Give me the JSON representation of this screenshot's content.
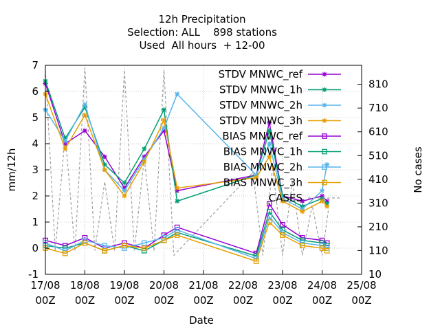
{
  "chart_data": {
    "type": "line",
    "title_lines": [
      "12h Precipitation",
      "Selection: ALL    898 stations",
      "Used  All hours  + 12-00"
    ],
    "xlabel": "Date",
    "ylabel": "mm/12h",
    "y2label": "No cases",
    "xlim": [
      "2023-08-17T00:00",
      "2023-08-25T00:00"
    ],
    "x_ticks": [
      {
        "line1": "17/08",
        "line2": "00Z"
      },
      {
        "line1": "18/08",
        "line2": "00Z"
      },
      {
        "line1": "19/08",
        "line2": "00Z"
      },
      {
        "line1": "20/08",
        "line2": "00Z"
      },
      {
        "line1": "21/08",
        "line2": "00Z"
      },
      {
        "line1": "22/08",
        "line2": "00Z"
      },
      {
        "line1": "23/08",
        "line2": "00Z"
      },
      {
        "line1": "24/08",
        "line2": "00Z"
      },
      {
        "line1": "25/08",
        "line2": "00Z"
      }
    ],
    "ylim": [
      -1,
      7
    ],
    "y_ticks": [
      -1,
      0,
      1,
      2,
      3,
      4,
      5,
      6,
      7
    ],
    "y2lim": [
      10,
      890
    ],
    "y2_ticks": [
      10,
      110,
      210,
      310,
      410,
      510,
      610,
      710,
      810
    ],
    "grid": true,
    "legend_position": "top-right",
    "series": [
      {
        "name": "STDV MNWC_ref",
        "color": "#9400d3",
        "marker": "star",
        "axis": "y",
        "x": [
          "2023-08-17T00:00",
          "2023-08-17T12:00",
          "2023-08-18T00:00",
          "2023-08-18T12:00",
          "2023-08-19T00:00",
          "2023-08-19T12:00",
          "2023-08-20T00:00",
          "2023-08-20T08:00",
          "2023-08-22T08:00",
          "2023-08-22T16:00",
          "2023-08-23T00:00",
          "2023-08-23T12:00",
          "2023-08-24T00:00",
          "2023-08-24T03:00"
        ],
        "values": [
          6.3,
          4.0,
          4.5,
          3.5,
          2.3,
          3.5,
          4.5,
          2.2,
          2.8,
          4.8,
          2.0,
          1.8,
          2.0,
          1.8
        ]
      },
      {
        "name": "STDV MNWC_1h",
        "color": "#009e73",
        "marker": "star",
        "axis": "y",
        "x": [
          "2023-08-17T00:00",
          "2023-08-17T12:00",
          "2023-08-18T00:00",
          "2023-08-18T12:00",
          "2023-08-19T00:00",
          "2023-08-19T12:00",
          "2023-08-20T00:00",
          "2023-08-20T08:00",
          "2023-08-22T08:00",
          "2023-08-22T16:00",
          "2023-08-23T00:00",
          "2023-08-23T12:00",
          "2023-08-24T00:00",
          "2023-08-24T03:00"
        ],
        "values": [
          6.4,
          4.2,
          5.4,
          3.2,
          2.5,
          3.8,
          5.3,
          1.8,
          2.8,
          4.5,
          2.0,
          1.6,
          1.9,
          1.7
        ]
      },
      {
        "name": "STDV MNWC_2h",
        "color": "#56b4e9",
        "marker": "star",
        "axis": "y",
        "x": [
          "2023-08-17T00:00",
          "2023-08-17T12:00",
          "2023-08-18T00:00",
          "2023-08-18T12:00",
          "2023-08-19T00:00",
          "2023-08-19T12:00",
          "2023-08-20T00:00",
          "2023-08-20T08:00",
          "2023-08-22T08:00",
          "2023-08-22T16:00",
          "2023-08-23T00:00",
          "2023-08-23T12:00",
          "2023-08-24T00:00",
          "2023-08-24T03:00"
        ],
        "values": [
          5.3,
          4.1,
          5.5,
          3.0,
          2.2,
          3.4,
          4.6,
          5.9,
          2.8,
          4.0,
          1.9,
          1.5,
          2.2,
          3.2
        ]
      },
      {
        "name": "STDV MNWC_3h",
        "color": "#e69f00",
        "marker": "star",
        "axis": "y",
        "x": [
          "2023-08-17T00:00",
          "2023-08-17T12:00",
          "2023-08-18T00:00",
          "2023-08-18T12:00",
          "2023-08-19T00:00",
          "2023-08-19T12:00",
          "2023-08-20T00:00",
          "2023-08-20T08:00",
          "2023-08-22T08:00",
          "2023-08-22T16:00",
          "2023-08-23T00:00",
          "2023-08-23T12:00",
          "2023-08-24T00:00",
          "2023-08-24T03:00"
        ],
        "values": [
          5.9,
          3.8,
          5.1,
          3.0,
          2.0,
          3.3,
          4.9,
          2.3,
          2.7,
          3.5,
          1.8,
          1.4,
          1.8,
          1.6
        ]
      },
      {
        "name": "BIAS MNWC_ref",
        "color": "#9400d3",
        "marker": "square",
        "axis": "y",
        "x": [
          "2023-08-17T00:00",
          "2023-08-17T12:00",
          "2023-08-18T00:00",
          "2023-08-18T12:00",
          "2023-08-19T00:00",
          "2023-08-19T12:00",
          "2023-08-20T00:00",
          "2023-08-20T08:00",
          "2023-08-22T08:00",
          "2023-08-22T16:00",
          "2023-08-23T00:00",
          "2023-08-23T12:00",
          "2023-08-24T00:00",
          "2023-08-24T03:00"
        ],
        "values": [
          0.3,
          0.1,
          0.4,
          0.0,
          0.2,
          0.0,
          0.5,
          0.8,
          -0.2,
          1.7,
          0.9,
          0.4,
          0.3,
          0.2
        ]
      },
      {
        "name": "BIAS MNWC_1h",
        "color": "#009e73",
        "marker": "square",
        "axis": "y",
        "x": [
          "2023-08-17T00:00",
          "2023-08-17T12:00",
          "2023-08-18T00:00",
          "2023-08-18T12:00",
          "2023-08-19T00:00",
          "2023-08-19T12:00",
          "2023-08-20T00:00",
          "2023-08-20T08:00",
          "2023-08-22T08:00",
          "2023-08-22T16:00",
          "2023-08-23T00:00",
          "2023-08-23T12:00",
          "2023-08-24T00:00",
          "2023-08-24T03:00"
        ],
        "values": [
          0.1,
          0.0,
          0.2,
          -0.1,
          0.1,
          -0.1,
          0.3,
          0.6,
          -0.3,
          1.4,
          0.7,
          0.3,
          0.2,
          0.1
        ]
      },
      {
        "name": "BIAS MNWC_2h",
        "color": "#56b4e9",
        "marker": "square",
        "axis": "y",
        "x": [
          "2023-08-17T00:00",
          "2023-08-17T12:00",
          "2023-08-18T00:00",
          "2023-08-18T12:00",
          "2023-08-19T00:00",
          "2023-08-19T12:00",
          "2023-08-20T00:00",
          "2023-08-20T08:00",
          "2023-08-22T08:00",
          "2023-08-22T16:00",
          "2023-08-23T00:00",
          "2023-08-23T12:00",
          "2023-08-24T00:00",
          "2023-08-24T03:00"
        ],
        "values": [
          0.2,
          -0.1,
          0.3,
          0.1,
          0.0,
          0.2,
          0.4,
          0.7,
          -0.4,
          1.2,
          0.6,
          0.2,
          0.1,
          0.0
        ]
      },
      {
        "name": "BIAS MNWC_3h",
        "color": "#e69f00",
        "marker": "square",
        "axis": "y",
        "x": [
          "2023-08-17T00:00",
          "2023-08-17T12:00",
          "2023-08-18T00:00",
          "2023-08-18T12:00",
          "2023-08-19T00:00",
          "2023-08-19T12:00",
          "2023-08-20T00:00",
          "2023-08-20T08:00",
          "2023-08-22T08:00",
          "2023-08-22T16:00",
          "2023-08-23T00:00",
          "2023-08-23T12:00",
          "2023-08-24T00:00",
          "2023-08-24T03:00"
        ],
        "values": [
          0.0,
          -0.2,
          0.2,
          -0.1,
          0.1,
          0.0,
          0.3,
          0.5,
          -0.5,
          1.0,
          0.5,
          0.1,
          0.0,
          -0.1
        ]
      },
      {
        "name": "CASES",
        "color": "#a0a0a0",
        "marker": "none",
        "dashed": true,
        "axis": "y2",
        "x": [
          "2023-08-17T00:00",
          "2023-08-17T06:00",
          "2023-08-17T12:00",
          "2023-08-17T18:00",
          "2023-08-18T00:00",
          "2023-08-18T06:00",
          "2023-08-18T12:00",
          "2023-08-18T18:00",
          "2023-08-19T00:00",
          "2023-08-19T06:00",
          "2023-08-19T12:00",
          "2023-08-19T18:00",
          "2023-08-20T00:00",
          "2023-08-20T06:00",
          "2023-08-22T06:00",
          "2023-08-22T12:00",
          "2023-08-22T18:00",
          "2023-08-23T00:00",
          "2023-08-23T06:00",
          "2023-08-23T12:00",
          "2023-08-23T18:00",
          "2023-08-24T00:00",
          "2023-08-24T04:00"
        ],
        "values": [
          870,
          110,
          600,
          110,
          880,
          110,
          400,
          110,
          870,
          110,
          500,
          110,
          870,
          90,
          440,
          90,
          460,
          90,
          400,
          90,
          300,
          90,
          290
        ]
      }
    ]
  }
}
